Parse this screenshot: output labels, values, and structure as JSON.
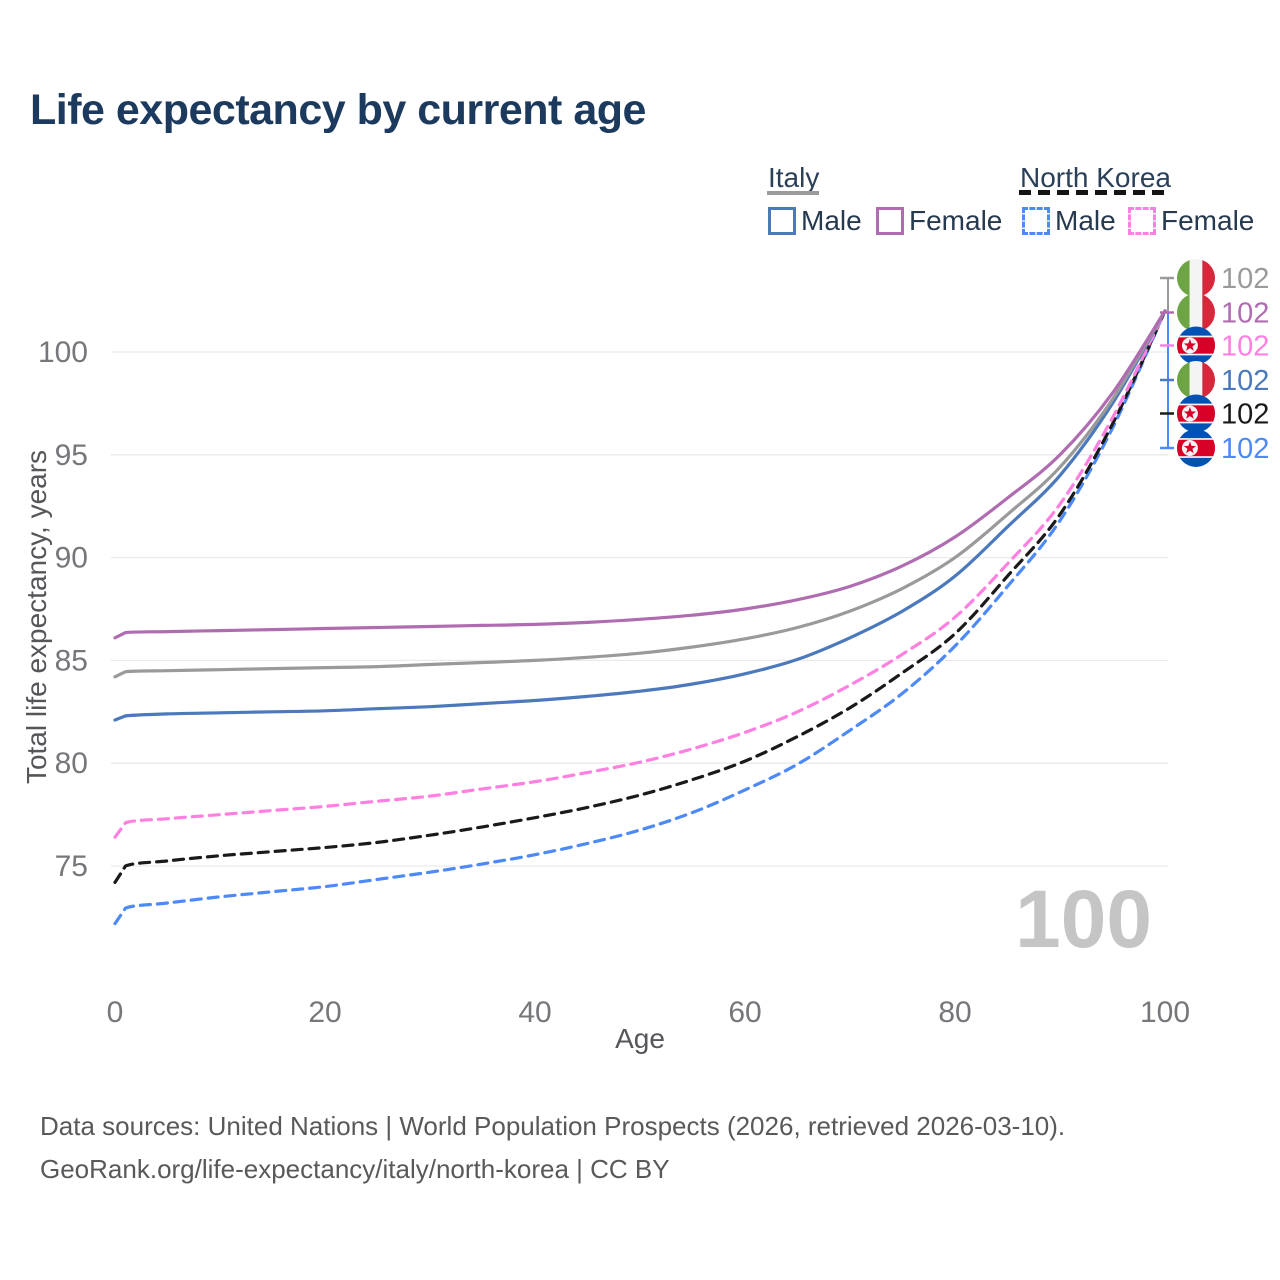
{
  "title": "Life expectancy by current age",
  "legend": {
    "groups": [
      {
        "label": "Italy",
        "line_style": "solid",
        "underline_color": "#9b9b9b",
        "items": [
          {
            "label": "Male",
            "color": "#4b79bc"
          },
          {
            "label": "Female",
            "color": "#b06cb0"
          }
        ]
      },
      {
        "label": "North Korea",
        "line_style": "dashed",
        "underline_color": "#141414",
        "items": [
          {
            "label": "Male",
            "color": "#4d8af8"
          },
          {
            "label": "Female",
            "color": "#ff80e0"
          }
        ]
      }
    ]
  },
  "watermark": "100",
  "footer": {
    "line1": "Data sources: United Nations | World Population Prospects (2026, retrieved 2026-03-10).",
    "line2": "GeoRank.org/life-expectancy/italy/north-korea | CC BY"
  },
  "chart_data": {
    "type": "line",
    "title": "Life expectancy by current age",
    "xlabel": "Age",
    "ylabel": "Total life expectancy, years",
    "xlim": [
      0,
      100
    ],
    "ylim": [
      71,
      103
    ],
    "x_ticks": [
      0,
      20,
      40,
      60,
      80,
      100
    ],
    "y_ticks": [
      75,
      80,
      85,
      90,
      95,
      100
    ],
    "grid": "horizontal-only",
    "grid_color": "#eaeaea",
    "legend_position": "top-right",
    "x": [
      0,
      1,
      5,
      10,
      15,
      20,
      25,
      30,
      35,
      40,
      45,
      50,
      55,
      60,
      65,
      70,
      75,
      80,
      85,
      90,
      95,
      100
    ],
    "series": [
      {
        "id": "italy-all",
        "name": "Italy — All",
        "country": "Italy",
        "sex": "All",
        "color": "#9a9a9a",
        "dashed": false,
        "flag": "italy",
        "end_label": "102",
        "values": [
          84.2,
          84.45,
          84.5,
          84.55,
          84.6,
          84.65,
          84.7,
          84.8,
          84.9,
          85.0,
          85.15,
          85.35,
          85.65,
          86.05,
          86.6,
          87.4,
          88.5,
          90.0,
          92.1,
          94.4,
          97.7,
          102
        ]
      },
      {
        "id": "italy-female",
        "name": "Italy — Female",
        "country": "Italy",
        "sex": "Female",
        "color": "#b06cb0",
        "dashed": false,
        "flag": "italy",
        "end_label": "102",
        "values": [
          86.1,
          86.35,
          86.4,
          86.45,
          86.5,
          86.55,
          86.6,
          86.65,
          86.7,
          86.75,
          86.85,
          87.0,
          87.2,
          87.5,
          87.95,
          88.6,
          89.6,
          91.0,
          92.9,
          95.0,
          98.0,
          102
        ]
      },
      {
        "id": "north-korea-female",
        "name": "North Korea — Female",
        "country": "North Korea",
        "sex": "Female",
        "color": "#ff80e0",
        "dashed": true,
        "flag": "north-korea",
        "end_label": "102",
        "values": [
          76.4,
          77.1,
          77.3,
          77.5,
          77.7,
          77.9,
          78.15,
          78.4,
          78.75,
          79.1,
          79.55,
          80.05,
          80.7,
          81.5,
          82.5,
          83.8,
          85.3,
          87.1,
          89.7,
          92.6,
          96.8,
          102
        ]
      },
      {
        "id": "italy-male",
        "name": "Italy — Male",
        "country": "Italy",
        "sex": "Male",
        "color": "#4b79bc",
        "dashed": false,
        "flag": "italy",
        "end_label": "102",
        "values": [
          82.1,
          82.3,
          82.4,
          82.45,
          82.5,
          82.55,
          82.65,
          82.75,
          82.9,
          83.05,
          83.25,
          83.5,
          83.85,
          84.35,
          85.05,
          86.1,
          87.4,
          89.1,
          91.5,
          94.0,
          97.5,
          102
        ]
      },
      {
        "id": "north-korea-all",
        "name": "North Korea — All",
        "country": "North Korea",
        "sex": "All",
        "color": "#1a1a1a",
        "dashed": true,
        "flag": "north-korea",
        "end_label": "102",
        "values": [
          74.2,
          75.0,
          75.25,
          75.5,
          75.7,
          75.9,
          76.15,
          76.5,
          76.9,
          77.35,
          77.85,
          78.45,
          79.2,
          80.1,
          81.3,
          82.7,
          84.4,
          86.3,
          89.1,
          92.1,
          96.5,
          102
        ]
      },
      {
        "id": "north-korea-male",
        "name": "North Korea — Male",
        "country": "North Korea",
        "sex": "Male",
        "color": "#4d8af8",
        "dashed": true,
        "flag": "north-korea",
        "end_label": "102",
        "values": [
          72.2,
          72.95,
          73.2,
          73.5,
          73.75,
          74.0,
          74.35,
          74.7,
          75.1,
          75.55,
          76.1,
          76.75,
          77.6,
          78.7,
          79.95,
          81.6,
          83.4,
          85.7,
          88.6,
          91.8,
          96.3,
          102
        ]
      }
    ],
    "flag_colors": {
      "italy_green": "#6da544",
      "italy_white": "#f4f4f4",
      "italy_red": "#d5283b",
      "nk_blue": "#0052b4",
      "nk_red": "#d80027",
      "nk_white": "#f4f4f4"
    }
  }
}
